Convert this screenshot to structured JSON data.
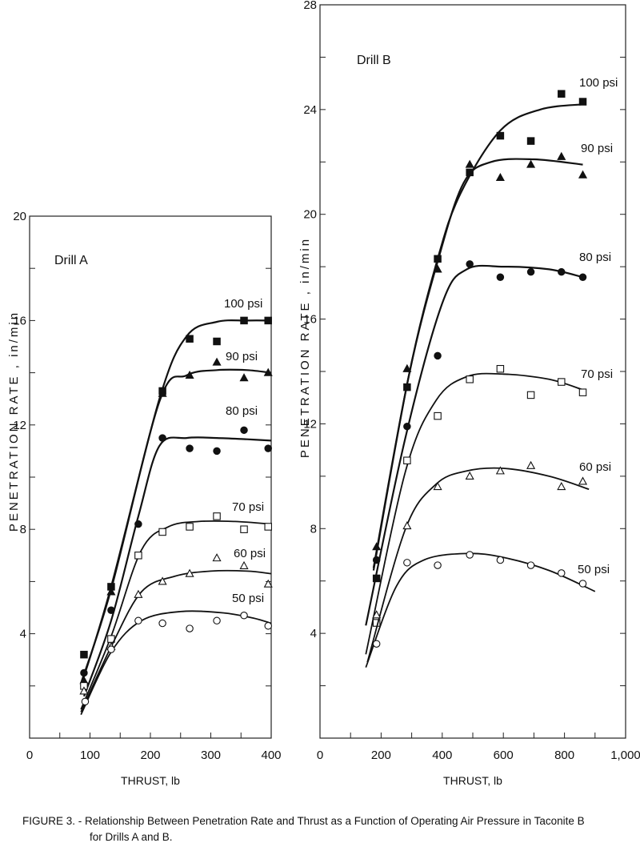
{
  "caption": {
    "line1": "FIGURE 3. - Relationship Between Penetration Rate and Thrust as a Function of Operating Air Pressure in Taconite B",
    "line2": "for Drills A and B."
  },
  "chart_data": [
    {
      "type": "scatter",
      "panel_label": "Drill A",
      "xlabel": "THRUST, lb",
      "ylabel": "PENETRATION RATE , in/min",
      "xlim": [
        0,
        400
      ],
      "ylim": [
        0,
        20
      ],
      "x_ticks": [
        0,
        100,
        200,
        300,
        400
      ],
      "y_ticks": [
        4,
        8,
        12,
        16,
        20
      ],
      "series": [
        {
          "name": "100 psi",
          "marker": "filled-square",
          "points": [
            [
              90,
              3.2
            ],
            [
              135,
              5.8
            ],
            [
              220,
              13.3
            ],
            [
              265,
              15.3
            ],
            [
              310,
              15.2
            ],
            [
              355,
              16.0
            ],
            [
              395,
              16.0
            ]
          ],
          "curve": [
            [
              85,
              2.0
            ],
            [
              135,
              5.8
            ],
            [
              215,
              13.0
            ],
            [
              260,
              15.4
            ],
            [
              310,
              15.95
            ],
            [
              360,
              16.0
            ],
            [
              400,
              16.0
            ]
          ]
        },
        {
          "name": "90 psi",
          "marker": "filled-triangle",
          "points": [
            [
              90,
              2.2
            ],
            [
              135,
              5.6
            ],
            [
              220,
              13.2
            ],
            [
              265,
              13.9
            ],
            [
              310,
              14.4
            ],
            [
              355,
              13.8
            ],
            [
              395,
              14.0
            ]
          ],
          "curve": [
            [
              85,
              2.1
            ],
            [
              135,
              5.7
            ],
            [
              215,
              12.9
            ],
            [
              260,
              13.9
            ],
            [
              310,
              14.1
            ],
            [
              360,
              14.1
            ],
            [
              400,
              14.0
            ]
          ]
        },
        {
          "name": "80 psi",
          "marker": "filled-circle",
          "points": [
            [
              90,
              2.5
            ],
            [
              135,
              4.9
            ],
            [
              180,
              8.2
            ],
            [
              220,
              11.5
            ],
            [
              265,
              11.1
            ],
            [
              310,
              11.0
            ],
            [
              355,
              11.8
            ],
            [
              395,
              11.1
            ]
          ],
          "curve": [
            [
              90,
              1.6
            ],
            [
              135,
              4.5
            ],
            [
              180,
              8.5
            ],
            [
              215,
              11.2
            ],
            [
              260,
              11.5
            ],
            [
              310,
              11.5
            ],
            [
              360,
              11.45
            ],
            [
              400,
              11.4
            ]
          ]
        },
        {
          "name": "70 psi",
          "marker": "open-square",
          "points": [
            [
              90,
              2.0
            ],
            [
              135,
              3.8
            ],
            [
              180,
              7.0
            ],
            [
              220,
              7.9
            ],
            [
              265,
              8.1
            ],
            [
              310,
              8.5
            ],
            [
              355,
              8.0
            ],
            [
              395,
              8.1
            ]
          ],
          "curve": [
            [
              85,
              1.1
            ],
            [
              135,
              3.9
            ],
            [
              185,
              7.2
            ],
            [
              230,
              8.1
            ],
            [
              280,
              8.3
            ],
            [
              340,
              8.3
            ],
            [
              400,
              8.2
            ]
          ]
        },
        {
          "name": "60 psi",
          "marker": "open-triangle",
          "points": [
            [
              90,
              1.8
            ],
            [
              135,
              3.5
            ],
            [
              180,
              5.5
            ],
            [
              220,
              6.0
            ],
            [
              265,
              6.3
            ],
            [
              310,
              6.9
            ],
            [
              355,
              6.6
            ],
            [
              395,
              5.9
            ]
          ],
          "curve": [
            [
              85,
              1.0
            ],
            [
              135,
              3.5
            ],
            [
              185,
              5.6
            ],
            [
              240,
              6.2
            ],
            [
              300,
              6.4
            ],
            [
              360,
              6.4
            ],
            [
              400,
              6.3
            ]
          ]
        },
        {
          "name": "50 psi",
          "marker": "open-circle",
          "points": [
            [
              92,
              1.4
            ],
            [
              135,
              3.4
            ],
            [
              180,
              4.5
            ],
            [
              220,
              4.4
            ],
            [
              265,
              4.2
            ],
            [
              310,
              4.5
            ],
            [
              355,
              4.7
            ],
            [
              395,
              4.3
            ]
          ],
          "curve": [
            [
              85,
              0.9
            ],
            [
              135,
              3.3
            ],
            [
              185,
              4.5
            ],
            [
              250,
              4.85
            ],
            [
              320,
              4.8
            ],
            [
              370,
              4.6
            ],
            [
              400,
              4.4
            ]
          ]
        }
      ]
    },
    {
      "type": "scatter",
      "panel_label": "Drill B",
      "xlabel": "THRUST, lb",
      "ylabel": "PENETRATION RATE , in/min",
      "xlim": [
        0,
        1000
      ],
      "ylim": [
        0,
        28
      ],
      "x_ticks": [
        0,
        200,
        400,
        600,
        800,
        1000
      ],
      "x_tick_labels": [
        "0",
        "200",
        "400",
        "600",
        "800",
        "1,000"
      ],
      "y_ticks": [
        4,
        8,
        12,
        16,
        20,
        24,
        28
      ],
      "series": [
        {
          "name": "100 psi",
          "marker": "filled-square",
          "points": [
            [
              185,
              6.1
            ],
            [
              285,
              13.4
            ],
            [
              385,
              18.3
            ],
            [
              490,
              21.6
            ],
            [
              590,
              23.0
            ],
            [
              690,
              22.8
            ],
            [
              790,
              24.6
            ],
            [
              860,
              24.3
            ]
          ],
          "curve": [
            [
              175,
              6.4
            ],
            [
              290,
              13.8
            ],
            [
              385,
              18.3
            ],
            [
              460,
              20.8
            ],
            [
              590,
              23.2
            ],
            [
              720,
              24.0
            ],
            [
              860,
              24.2
            ]
          ]
        },
        {
          "name": "90 psi",
          "marker": "filled-triangle",
          "points": [
            [
              185,
              7.3
            ],
            [
              285,
              14.1
            ],
            [
              385,
              17.9
            ],
            [
              490,
              21.9
            ],
            [
              590,
              21.4
            ],
            [
              690,
              21.9
            ],
            [
              790,
              22.2
            ],
            [
              860,
              21.5
            ]
          ],
          "curve": [
            [
              175,
              6.5
            ],
            [
              290,
              13.8
            ],
            [
              385,
              18.2
            ],
            [
              470,
              21.2
            ],
            [
              560,
              22.0
            ],
            [
              700,
              22.1
            ],
            [
              860,
              21.9
            ]
          ]
        },
        {
          "name": "80 psi",
          "marker": "filled-circle",
          "points": [
            [
              185,
              6.8
            ],
            [
              285,
              11.9
            ],
            [
              385,
              14.6
            ],
            [
              490,
              18.1
            ],
            [
              590,
              17.6
            ],
            [
              690,
              17.8
            ],
            [
              790,
              17.8
            ],
            [
              860,
              17.6
            ]
          ],
          "curve": [
            [
              150,
              4.3
            ],
            [
              280,
              11.5
            ],
            [
              400,
              16.6
            ],
            [
              480,
              17.9
            ],
            [
              600,
              18.0
            ],
            [
              750,
              17.9
            ],
            [
              860,
              17.6
            ]
          ]
        },
        {
          "name": "70 psi",
          "marker": "open-square",
          "points": [
            [
              185,
              4.4
            ],
            [
              285,
              10.6
            ],
            [
              385,
              12.3
            ],
            [
              490,
              13.7
            ],
            [
              590,
              14.1
            ],
            [
              690,
              13.1
            ],
            [
              790,
              13.6
            ],
            [
              860,
              13.2
            ]
          ],
          "curve": [
            [
              150,
              3.2
            ],
            [
              280,
              10.2
            ],
            [
              380,
              12.9
            ],
            [
              480,
              13.8
            ],
            [
              600,
              13.9
            ],
            [
              750,
              13.7
            ],
            [
              860,
              13.3
            ]
          ]
        },
        {
          "name": "60 psi",
          "marker": "open-triangle",
          "points": [
            [
              185,
              4.7
            ],
            [
              285,
              8.1
            ],
            [
              385,
              9.6
            ],
            [
              490,
              10.0
            ],
            [
              590,
              10.2
            ],
            [
              690,
              10.4
            ],
            [
              790,
              9.6
            ],
            [
              860,
              9.8
            ]
          ],
          "curve": [
            [
              155,
              2.9
            ],
            [
              280,
              8.0
            ],
            [
              380,
              9.7
            ],
            [
              480,
              10.2
            ],
            [
              600,
              10.3
            ],
            [
              750,
              10.0
            ],
            [
              880,
              9.5
            ]
          ]
        },
        {
          "name": "50 psi",
          "marker": "open-circle",
          "points": [
            [
              185,
              3.6
            ],
            [
              285,
              6.7
            ],
            [
              385,
              6.6
            ],
            [
              490,
              7.0
            ],
            [
              590,
              6.8
            ],
            [
              690,
              6.6
            ],
            [
              790,
              6.3
            ],
            [
              860,
              5.9
            ]
          ],
          "curve": [
            [
              150,
              2.7
            ],
            [
              250,
              5.8
            ],
            [
              340,
              6.8
            ],
            [
              480,
              7.05
            ],
            [
              600,
              6.9
            ],
            [
              750,
              6.4
            ],
            [
              900,
              5.6
            ]
          ]
        }
      ]
    }
  ]
}
